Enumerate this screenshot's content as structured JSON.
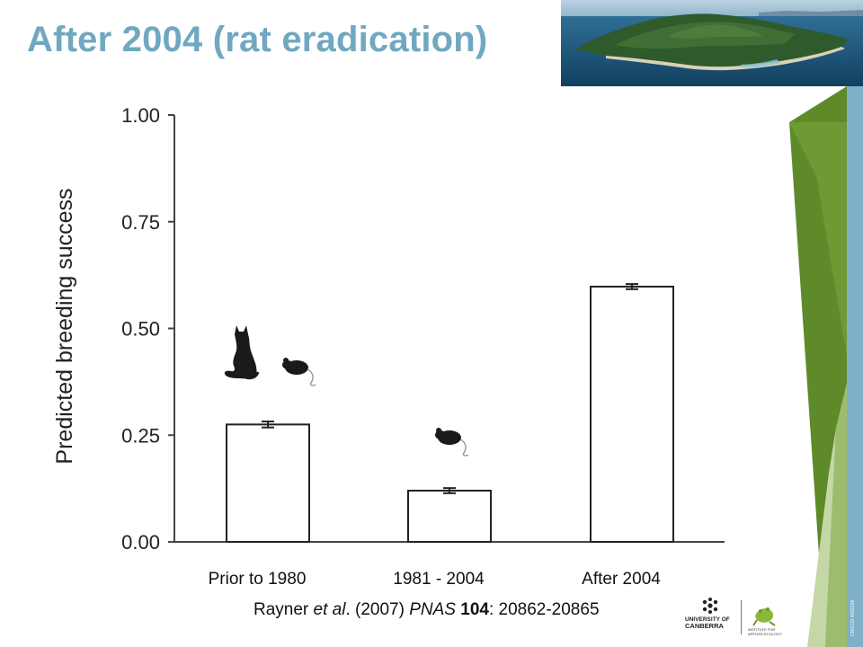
{
  "slide": {
    "title": "After 2004 (rat eradication)",
    "citation": {
      "authors": "Rayner",
      "etal": "et al",
      "year_part": ". (2007) ",
      "journal": "PNAS",
      "volume": "104",
      "pages": ": 20862-20865"
    },
    "logos": {
      "university_line1": "UNIVERSITY OF",
      "university_line2": "CANBERRA",
      "institute_line1": "INSTITUTE FOR",
      "institute_line2": "APPLIED ECOLOGY"
    },
    "side_code": "CRICOS #00212K",
    "colors": {
      "title": "#6fa8c0",
      "accent_green": "#5e8a2a",
      "accent_blue": "#7fb0c8"
    }
  },
  "chart_data": {
    "type": "bar",
    "categories": [
      "Prior to 1980",
      "1981 - 2004",
      "After 2004"
    ],
    "values": [
      0.275,
      0.12,
      0.598
    ],
    "errors": [
      0.007,
      0.006,
      0.006
    ],
    "ylabel": "Predicted breeding success",
    "xlabel": "",
    "ylim": [
      0,
      1
    ],
    "yticks": [
      0,
      0.25,
      0.5,
      0.75,
      1
    ],
    "ytick_labels": [
      "0.00",
      "0.25",
      "0.50",
      "0.75",
      "1.00"
    ],
    "grid": false,
    "bar_color": "#ffffff",
    "icons": [
      {
        "category": "Prior to 1980",
        "items": [
          "cat-icon",
          "rat-icon"
        ]
      },
      {
        "category": "1981 - 2004",
        "items": [
          "rat-icon"
        ]
      }
    ]
  }
}
